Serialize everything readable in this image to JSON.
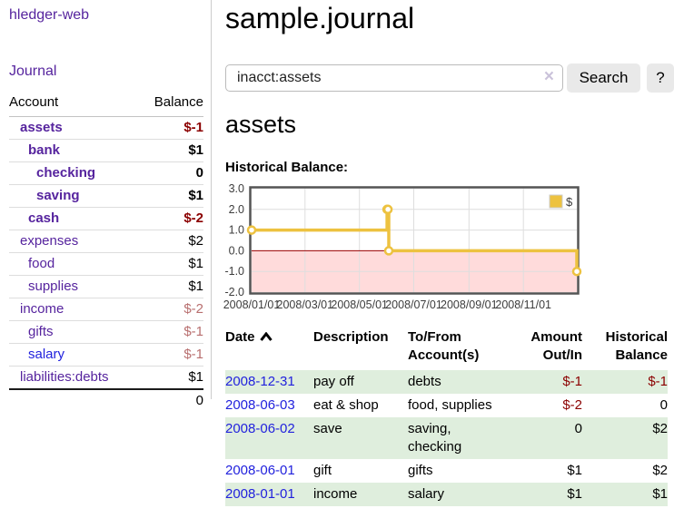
{
  "app": {
    "title": "hledger-web"
  },
  "sidebar": {
    "journal_label": "Journal",
    "table": {
      "headers": [
        "Account",
        "Balance"
      ],
      "rows": [
        {
          "account": "assets",
          "balance": "$-1",
          "level": 1,
          "emphasized": true,
          "account_color": "purple",
          "balance_color": "negative"
        },
        {
          "account": "bank",
          "balance": "$1",
          "level": 2,
          "emphasized": true,
          "account_color": "purple",
          "balance_color": "normal"
        },
        {
          "account": "checking",
          "balance": "0",
          "level": 3,
          "emphasized": true,
          "account_color": "purple",
          "balance_color": "normal"
        },
        {
          "account": "saving",
          "balance": "$1",
          "level": 3,
          "emphasized": true,
          "account_color": "purple",
          "balance_color": "normal"
        },
        {
          "account": "cash",
          "balance": "$-2",
          "level": 2,
          "emphasized": true,
          "account_color": "purple",
          "balance_color": "negative"
        },
        {
          "account": "expenses",
          "balance": "$2",
          "level": 1,
          "emphasized": false,
          "account_color": "purple",
          "balance_color": "normal"
        },
        {
          "account": "food",
          "balance": "$1",
          "level": 2,
          "emphasized": false,
          "account_color": "purple",
          "balance_color": "normal"
        },
        {
          "account": "supplies",
          "balance": "$1",
          "level": 2,
          "emphasized": false,
          "account_color": "purple",
          "balance_color": "normal"
        },
        {
          "account": "income",
          "balance": "$-2",
          "level": 1,
          "emphasized": false,
          "account_color": "purple",
          "balance_color": "negative-muted"
        },
        {
          "account": "gifts",
          "balance": "$-1",
          "level": 2,
          "emphasized": false,
          "account_color": "purple",
          "balance_color": "negative-muted"
        },
        {
          "account": "salary",
          "balance": "$-1",
          "level": 2,
          "emphasized": false,
          "account_color": "blue",
          "balance_color": "negative-muted"
        },
        {
          "account": "liabilities:debts",
          "balance": "$1",
          "level": 1,
          "emphasized": false,
          "account_color": "purple",
          "balance_color": "normal"
        }
      ],
      "total": "0"
    }
  },
  "main": {
    "title": "sample.journal",
    "search": {
      "value": "inacct:assets",
      "clear_icon": "×",
      "button_label": "Search",
      "help_label": "?"
    },
    "account_heading": "assets"
  },
  "chart_data": {
    "type": "line",
    "step": true,
    "title": "Historical Balance:",
    "x_range": [
      "2008-01-01",
      "2008-12-31"
    ],
    "ylim": [
      -2.0,
      3.0
    ],
    "yticks": [
      3.0,
      2.0,
      1.0,
      0.0,
      -1.0,
      -2.0
    ],
    "xticks": [
      "2008/01/01",
      "2008/03/01",
      "2008/05/01",
      "2008/07/01",
      "2008/09/01",
      "2008/11/01"
    ],
    "series": [
      {
        "name": "$",
        "color": "#edc240",
        "points": [
          [
            "2008-01-01",
            1
          ],
          [
            "2008-06-01",
            2
          ],
          [
            "2008-06-02",
            2
          ],
          [
            "2008-06-03",
            0
          ],
          [
            "2008-12-31",
            -1
          ]
        ]
      }
    ],
    "legend": {
      "label": "$",
      "position": "top-right"
    },
    "grid": true,
    "negative_region_color": "#ffdbdb",
    "zero_line_color": "#990000"
  },
  "register": {
    "headers": [
      "Date",
      "Description",
      "To/From Account(s)",
      "Amount Out/In",
      "Historical Balance"
    ],
    "sort": "ascending",
    "rows": [
      {
        "date": "2008-12-31",
        "description": "pay off",
        "accounts": "debts",
        "amount": "$-1",
        "amount_negative": true,
        "balance": "$-1",
        "balance_negative": true
      },
      {
        "date": "2008-06-03",
        "description": "eat & shop",
        "accounts": "food, supplies",
        "amount": "$-2",
        "amount_negative": true,
        "balance": "0",
        "balance_negative": false
      },
      {
        "date": "2008-06-02",
        "description": "save",
        "accounts": "saving, checking",
        "amount": "0",
        "amount_negative": false,
        "balance": "$2",
        "balance_negative": false
      },
      {
        "date": "2008-06-01",
        "description": "gift",
        "accounts": "gifts",
        "amount": "$1",
        "amount_negative": false,
        "balance": "$2",
        "balance_negative": false
      },
      {
        "date": "2008-01-01",
        "description": "income",
        "accounts": "salary",
        "amount": "$1",
        "amount_negative": false,
        "balance": "$1",
        "balance_negative": false
      }
    ]
  },
  "colors": {
    "link_purple": "#56249e",
    "link_blue": "#2222dd",
    "negative": "#8b0000",
    "negative_muted": "#b86f6f",
    "row_stripe_green": "#dfeedd",
    "chart_line_gold": "#edc240",
    "chart_negative_fill": "#ffdbdb",
    "chart_zero_line": "#990000",
    "button_bg": "#e9e9e9"
  }
}
